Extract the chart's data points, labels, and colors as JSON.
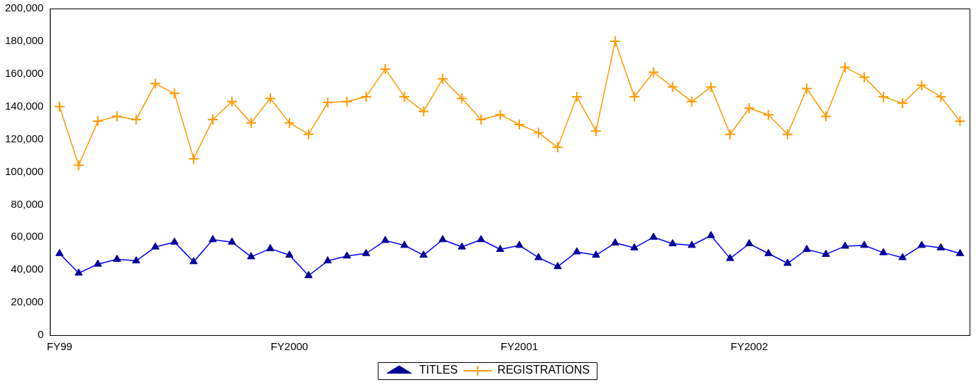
{
  "chart_data": {
    "type": "line",
    "categories": [
      "FY99",
      null,
      null,
      null,
      null,
      null,
      null,
      null,
      null,
      null,
      null,
      null,
      "FY2000",
      null,
      null,
      null,
      null,
      null,
      null,
      null,
      null,
      null,
      null,
      null,
      "FY2001",
      null,
      null,
      null,
      null,
      null,
      null,
      null,
      null,
      null,
      null,
      null,
      "FY2002",
      null,
      null,
      null,
      null,
      null,
      null,
      null,
      null,
      null,
      null,
      null
    ],
    "ylim": [
      0,
      200000
    ],
    "yticks": [
      {
        "value": 0,
        "label": "0"
      },
      {
        "value": 20000,
        "label": "20,000"
      },
      {
        "value": 40000,
        "label": "40,000"
      },
      {
        "value": 60000,
        "label": "60,000"
      },
      {
        "value": 80000,
        "label": "80,000"
      },
      {
        "value": 100000,
        "label": "100,000"
      },
      {
        "value": 120000,
        "label": "120,000"
      },
      {
        "value": 140000,
        "label": "140,000"
      },
      {
        "value": 160000,
        "label": "160,000"
      },
      {
        "value": 180000,
        "label": "180,000"
      },
      {
        "value": 200000,
        "label": "200,000"
      }
    ],
    "grid": false,
    "legend": "bottom",
    "line_style": "solid",
    "series": [
      {
        "name": "TITLES",
        "color": "#0000ff",
        "marker": "triangle",
        "values": [
          50000,
          38000,
          43500,
          46500,
          45500,
          54000,
          57000,
          45000,
          58500,
          57000,
          48000,
          53000,
          49000,
          36500,
          45500,
          48500,
          50000,
          58000,
          55000,
          49000,
          58500,
          54000,
          58500,
          52500,
          55000,
          47500,
          42000,
          51000,
          49000,
          56500,
          53500,
          60000,
          56000,
          55000,
          61000,
          47000,
          56000,
          50000,
          44000,
          52500,
          49500,
          54500,
          55000,
          50500,
          47500,
          55000,
          53500,
          50000
        ]
      },
      {
        "name": "REGISTRATIONS",
        "color": "#ff9900",
        "marker": "cross",
        "values": [
          140000,
          104000,
          131000,
          134000,
          132000,
          154000,
          148000,
          108000,
          132000,
          143000,
          130000,
          145000,
          130000,
          123000,
          142500,
          143000,
          146000,
          163000,
          146000,
          137000,
          157000,
          145000,
          132000,
          135000,
          129000,
          124000,
          115000,
          146000,
          125000,
          180000,
          146000,
          161000,
          152000,
          143000,
          152000,
          123000,
          139000,
          135000,
          123000,
          151000,
          134000,
          164000,
          158000,
          146000,
          142000,
          153000,
          146000,
          131000
        ]
      }
    ]
  }
}
